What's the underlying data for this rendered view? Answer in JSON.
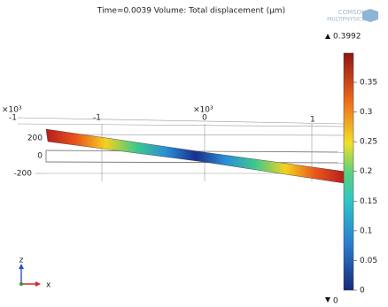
{
  "title": "Time=0.0039   Volume: Total displacement (μm)",
  "logo": [
    "COMSOL",
    "MULTIPHYSICS"
  ],
  "axes": {
    "x_scale": [
      "×10³",
      "×10³"
    ],
    "x_ticks": [
      "-1",
      "-1",
      "0",
      "1"
    ],
    "y_ticks": [
      "200",
      "0",
      "-200"
    ]
  },
  "triad": [
    "z",
    "x"
  ],
  "colorbar": {
    "max": 0.3992,
    "min": 0,
    "ticks": [
      0.35,
      0.3,
      0.25,
      0.2,
      0.15,
      0.1,
      0.05,
      0
    ]
  }
}
